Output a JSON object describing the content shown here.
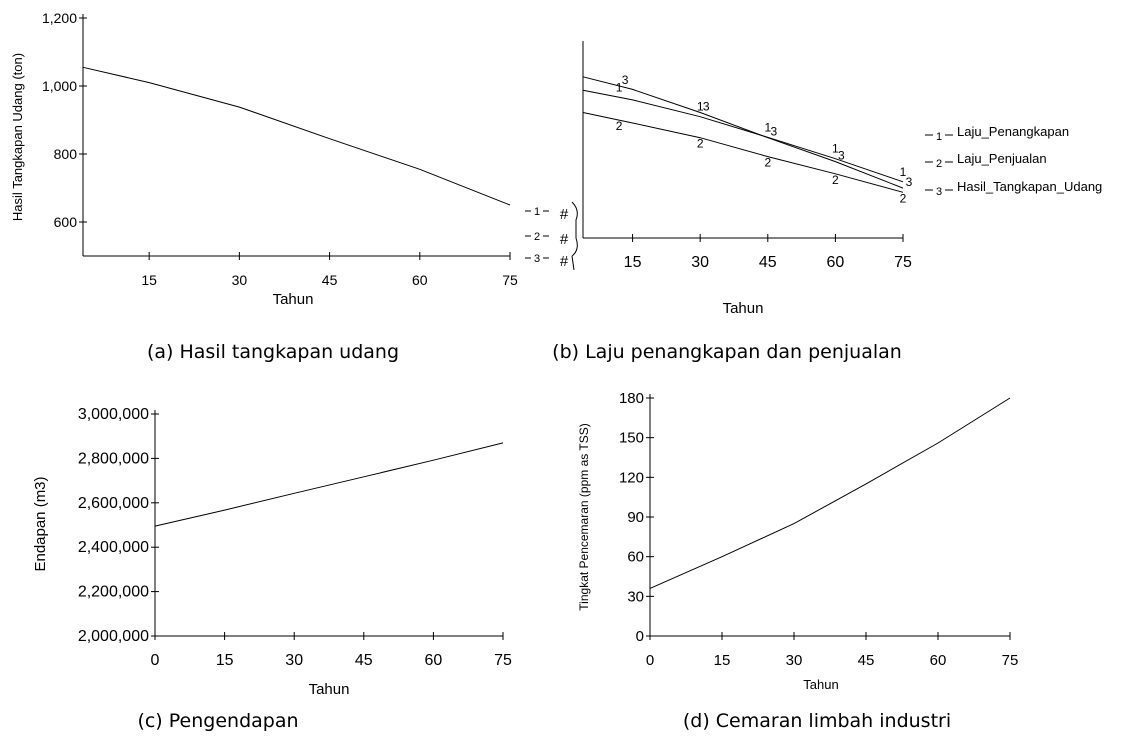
{
  "chart_data": [
    {
      "type": "line",
      "caption": "(a) Hasil tangkapan udang",
      "title": "",
      "xlabel": "Tahun",
      "ylabel": "Hasil Tangkapan Udang (ton)",
      "xlim": [
        4,
        75
      ],
      "ylim": [
        500,
        1200
      ],
      "xticks": [
        "15",
        "30",
        "45",
        "60",
        "75"
      ],
      "yticks": [
        "600",
        "800",
        "1,000",
        "1,200"
      ],
      "grid": false,
      "series": [
        {
          "color": "#000000",
          "x": [
            4,
            15,
            30,
            45,
            60,
            75
          ],
          "y": [
            1055,
            1010,
            938,
            845,
            755,
            650
          ]
        }
      ]
    },
    {
      "type": "line",
      "caption": "(b) Laju penangkapan dan penjualan",
      "title": "",
      "xlabel": "Tahun",
      "ylabel": "",
      "xlim": [
        4,
        75
      ],
      "xticks": [
        "15",
        "30",
        "45",
        "60",
        "75"
      ],
      "yticks": [
        "#",
        "#",
        "#"
      ],
      "grid": false,
      "legend_position": "right",
      "axis_legend_numbers": [
        "1",
        "2",
        "3"
      ],
      "series": [
        {
          "name": "Laju_Penangkapan",
          "marker": "1",
          "color": "#000000",
          "x": [
            4,
            15,
            30,
            45,
            60,
            75
          ],
          "y": [
            1028,
            1005,
            965,
            916,
            865,
            810
          ]
        },
        {
          "name": "Laju_Penjualan",
          "marker": "2",
          "color": "#999999",
          "x": [
            4,
            15,
            30,
            45,
            60,
            75
          ],
          "y": [
            975,
            950,
            915,
            870,
            829,
            785
          ]
        },
        {
          "name": "Hasil_Tangkapan_Udang",
          "marker": "3",
          "color": "#000000",
          "x": [
            4,
            15,
            30,
            45,
            60,
            75
          ],
          "y": [
            1060,
            1030,
            975,
            915,
            858,
            795
          ]
        }
      ]
    },
    {
      "type": "line",
      "caption": "(c) Pengendapan",
      "title": "",
      "xlabel": "Tahun",
      "ylabel": "Endapan (m3)",
      "xlim": [
        0,
        75
      ],
      "ylim": [
        2000000,
        3000000
      ],
      "xticks": [
        "0",
        "15",
        "30",
        "45",
        "60",
        "75"
      ],
      "yticks": [
        "2,000,000",
        "2,200,000",
        "2,400,000",
        "2,600,000",
        "2,800,000",
        "3,000,000"
      ],
      "grid": false,
      "series": [
        {
          "color": "#000000",
          "x": [
            0,
            15,
            30,
            45,
            60,
            75
          ],
          "y": [
            2495000,
            2567000,
            2643000,
            2717000,
            2792000,
            2870000
          ]
        }
      ]
    },
    {
      "type": "line",
      "caption": "(d) Cemaran limbah industri",
      "title": "",
      "xlabel": "Tahun",
      "ylabel": "Tingkat Pencemaran (ppm as TSS)",
      "xlim": [
        0,
        75
      ],
      "ylim": [
        0,
        180
      ],
      "xticks": [
        "0",
        "15",
        "30",
        "45",
        "60",
        "75"
      ],
      "yticks": [
        "0",
        "30",
        "60",
        "90",
        "120",
        "150",
        "180"
      ],
      "grid": false,
      "series": [
        {
          "color": "#000000",
          "x": [
            0,
            15,
            30,
            45,
            60,
            75
          ],
          "y": [
            36,
            60,
            85,
            115,
            146,
            180
          ]
        }
      ]
    }
  ]
}
